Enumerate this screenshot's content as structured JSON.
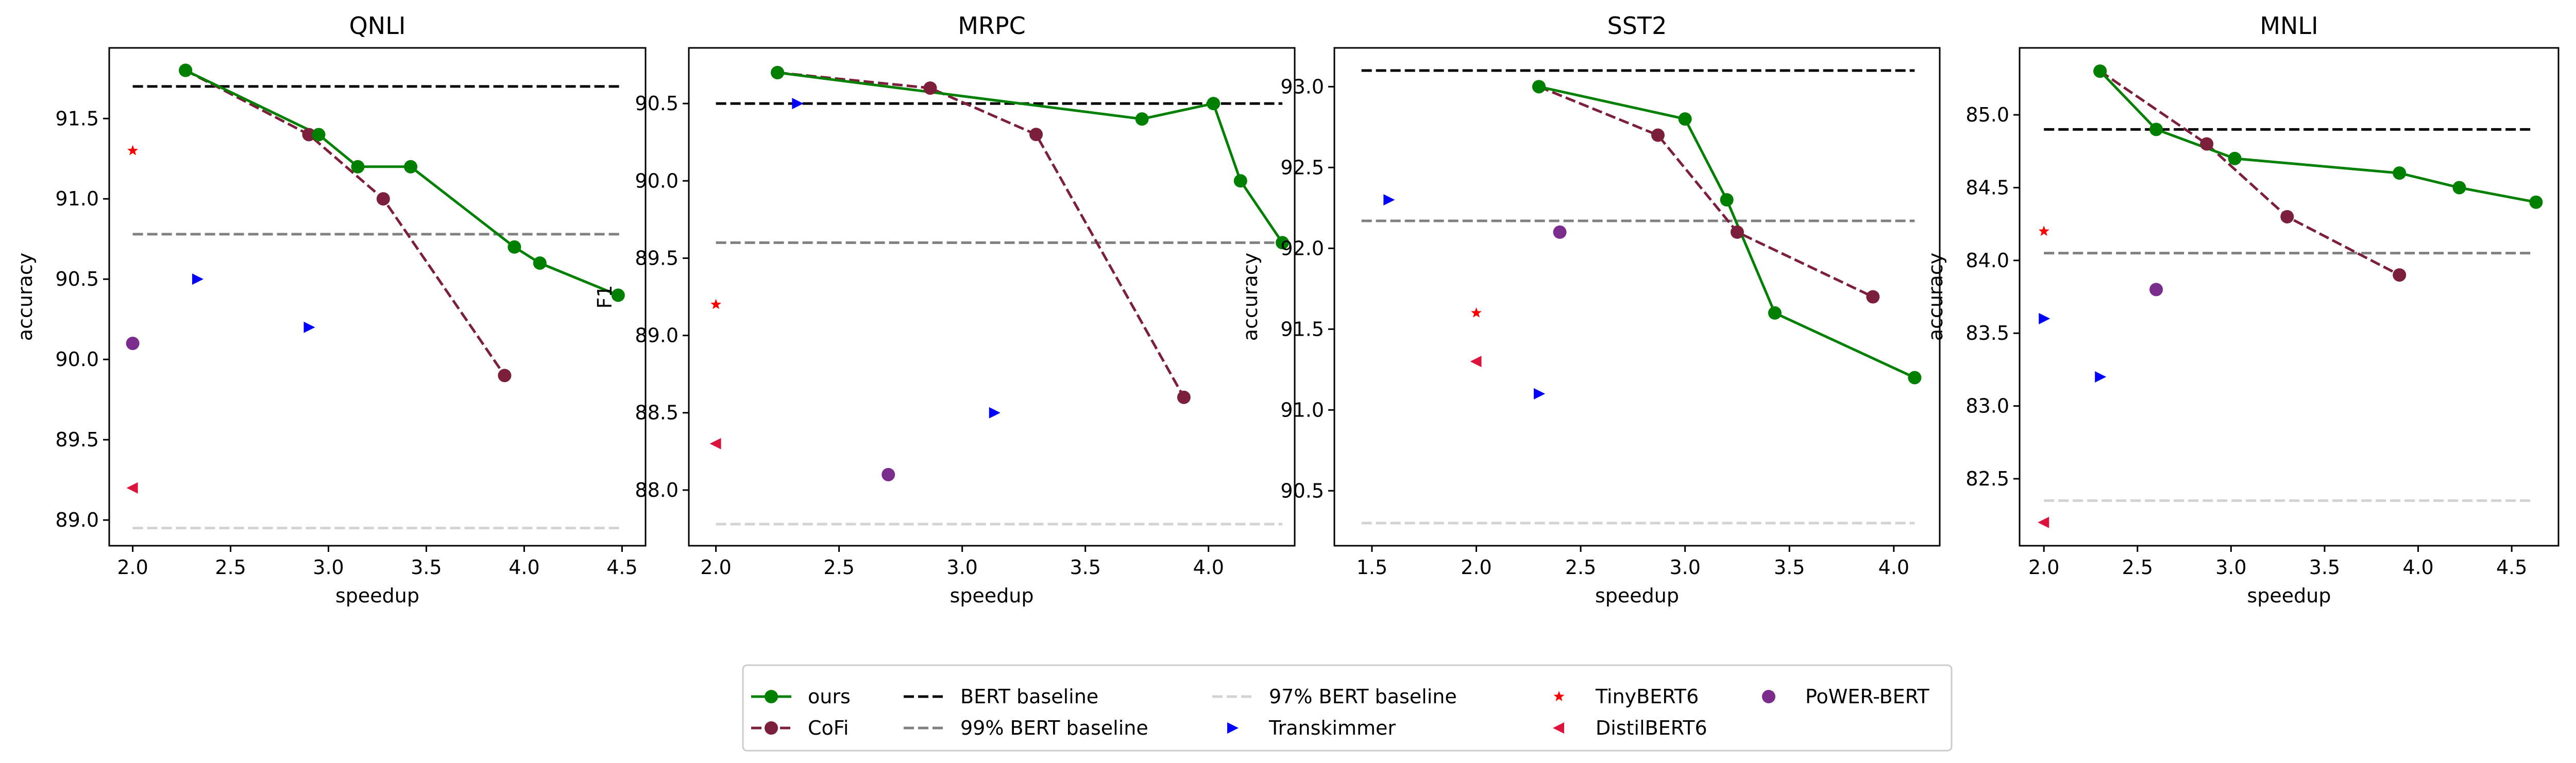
{
  "figure": {
    "legend_title": "",
    "legend_placement": "bottom-center"
  },
  "legend": [
    {
      "key": "ours",
      "label": "ours",
      "kind": "line-marker",
      "color": "#008000",
      "dash": "solid",
      "marker": "circle"
    },
    {
      "key": "cofi",
      "label": "CoFi",
      "kind": "line-marker",
      "color": "#7b1f3a",
      "dash": "dashed",
      "marker": "circle"
    },
    {
      "key": "bert",
      "label": "BERT baseline",
      "kind": "line",
      "color": "#000000",
      "dash": "dashed"
    },
    {
      "key": "b99",
      "label": "99% BERT baseline",
      "kind": "line",
      "color": "#808080",
      "dash": "dashed"
    },
    {
      "key": "b97",
      "label": "97% BERT baseline",
      "kind": "line",
      "color": "#d3d3d3",
      "dash": "dashed"
    },
    {
      "key": "transkimmer",
      "label": "Transkimmer",
      "kind": "marker",
      "color": "#0000ff",
      "marker": "triangle-right"
    },
    {
      "key": "tinybert",
      "label": "TinyBERT6",
      "kind": "marker",
      "color": "#ff0000",
      "marker": "star"
    },
    {
      "key": "distilbert",
      "label": "DistilBERT6",
      "kind": "marker",
      "color": "#dc143c",
      "marker": "triangle-left"
    },
    {
      "key": "powerbert",
      "label": "PoWER-BERT",
      "kind": "marker",
      "color": "#7b2d8e",
      "marker": "circle"
    }
  ],
  "chart_data": [
    {
      "type": "line",
      "title": "QNLI",
      "xlabel": "speedup",
      "ylabel": "accuracy",
      "xlim": [
        1.88,
        4.62
      ],
      "ylim": [
        88.84,
        91.94
      ],
      "xticks": [
        2.0,
        2.5,
        3.0,
        3.5,
        4.0,
        4.5
      ],
      "xtick_labels": [
        "2.0",
        "2.5",
        "3.0",
        "3.5",
        "4.0",
        "4.5"
      ],
      "yticks": [
        89.0,
        89.5,
        90.0,
        90.5,
        91.0,
        91.5
      ],
      "ytick_labels": [
        "89.0",
        "89.5",
        "90.0",
        "90.5",
        "91.0",
        "91.5"
      ],
      "hlines": {
        "bert": 91.7,
        "b99": 90.78,
        "b97": 88.95
      },
      "hline_xrange": [
        2.0,
        4.5
      ],
      "series": [
        {
          "key": "ours",
          "x": [
            2.27,
            2.95,
            3.15,
            3.42,
            3.95,
            4.08,
            4.48
          ],
          "y": [
            91.8,
            91.4,
            91.2,
            91.2,
            90.7,
            90.6,
            90.4
          ]
        },
        {
          "key": "cofi",
          "x": [
            2.27,
            2.9,
            3.28,
            3.9
          ],
          "y": [
            91.8,
            91.4,
            91.0,
            89.9
          ]
        }
      ],
      "points": {
        "transkimmer": [
          [
            2.33,
            90.5
          ],
          [
            2.9,
            90.2
          ]
        ],
        "tinybert": [
          [
            2.0,
            91.3
          ]
        ],
        "distilbert": [
          [
            2.0,
            89.2
          ]
        ],
        "powerbert": [
          [
            2.0,
            90.1
          ]
        ]
      }
    },
    {
      "type": "line",
      "title": "MRPC",
      "xlabel": "speedup",
      "ylabel": "F1",
      "xlim": [
        1.89,
        4.35
      ],
      "ylim": [
        87.64,
        90.86
      ],
      "xticks": [
        2.0,
        2.5,
        3.0,
        3.5,
        4.0
      ],
      "xtick_labels": [
        "2.0",
        "2.5",
        "3.0",
        "3.5",
        "4.0"
      ],
      "yticks": [
        88.0,
        88.5,
        89.0,
        89.5,
        90.0,
        90.5
      ],
      "ytick_labels": [
        "88.0",
        "88.5",
        "89.0",
        "89.5",
        "90.0",
        "90.5"
      ],
      "hlines": {
        "bert": 90.5,
        "b99": 89.6,
        "b97": 87.78
      },
      "hline_xrange": [
        2.0,
        4.3
      ],
      "series": [
        {
          "key": "ours",
          "x": [
            2.25,
            3.73,
            4.02,
            4.13,
            4.3
          ],
          "y": [
            90.7,
            90.4,
            90.5,
            90.0,
            89.6
          ]
        },
        {
          "key": "cofi",
          "x": [
            2.25,
            2.87,
            3.3,
            3.9
          ],
          "y": [
            90.7,
            90.6,
            90.3,
            88.6
          ]
        }
      ],
      "points": {
        "transkimmer": [
          [
            2.33,
            90.5
          ],
          [
            3.13,
            88.5
          ]
        ],
        "tinybert": [
          [
            2.0,
            89.2
          ]
        ],
        "distilbert": [
          [
            2.0,
            88.3
          ]
        ],
        "powerbert": [
          [
            2.7,
            88.1
          ]
        ]
      }
    },
    {
      "type": "line",
      "title": "SST2",
      "xlabel": "speedup",
      "ylabel": "accuracy",
      "xlim": [
        1.32,
        4.22
      ],
      "ylim": [
        90.16,
        93.24
      ],
      "xticks": [
        1.5,
        2.0,
        2.5,
        3.0,
        3.5,
        4.0
      ],
      "xtick_labels": [
        "1.5",
        "2.0",
        "2.5",
        "3.0",
        "3.5",
        "4.0"
      ],
      "yticks": [
        90.5,
        91.0,
        91.5,
        92.0,
        92.5,
        93.0
      ],
      "ytick_labels": [
        "90.5",
        "91.0",
        "91.5",
        "92.0",
        "92.5",
        "93.0"
      ],
      "hlines": {
        "bert": 93.1,
        "b99": 92.17,
        "b97": 90.3
      },
      "hline_xrange": [
        1.45,
        4.1
      ],
      "series": [
        {
          "key": "ours",
          "x": [
            2.3,
            3.0,
            3.2,
            3.43,
            4.1
          ],
          "y": [
            93.0,
            92.8,
            92.3,
            91.6,
            91.2
          ]
        },
        {
          "key": "cofi",
          "x": [
            2.3,
            2.87,
            3.25,
            3.9
          ],
          "y": [
            93.0,
            92.7,
            92.1,
            91.7
          ]
        }
      ],
      "points": {
        "transkimmer": [
          [
            1.58,
            92.3
          ],
          [
            2.3,
            91.1
          ]
        ],
        "tinybert": [
          [
            2.0,
            91.6
          ]
        ],
        "distilbert": [
          [
            2.0,
            91.3
          ]
        ],
        "powerbert": [
          [
            2.4,
            92.1
          ]
        ]
      }
    },
    {
      "type": "line",
      "title": "MNLI",
      "xlabel": "speedup",
      "ylabel": "accuracy",
      "xlim": [
        1.87,
        4.75
      ],
      "ylim": [
        82.04,
        85.46
      ],
      "xticks": [
        2.0,
        2.5,
        3.0,
        3.5,
        4.0,
        4.5
      ],
      "xtick_labels": [
        "2.0",
        "2.5",
        "3.0",
        "3.5",
        "4.0",
        "4.5"
      ],
      "yticks": [
        82.5,
        83.0,
        83.5,
        84.0,
        84.5,
        85.0
      ],
      "ytick_labels": [
        "82.5",
        "83.0",
        "83.5",
        "84.0",
        "84.5",
        "85.0"
      ],
      "hlines": {
        "bert": 84.9,
        "b99": 84.05,
        "b97": 82.35
      },
      "hline_xrange": [
        2.0,
        4.62
      ],
      "series": [
        {
          "key": "ours",
          "x": [
            2.3,
            2.6,
            3.02,
            3.9,
            4.22,
            4.63
          ],
          "y": [
            85.3,
            84.9,
            84.7,
            84.6,
            84.5,
            84.4
          ]
        },
        {
          "key": "cofi",
          "x": [
            2.3,
            2.87,
            3.3,
            3.9
          ],
          "y": [
            85.3,
            84.8,
            84.3,
            83.9
          ]
        }
      ],
      "points": {
        "transkimmer": [
          [
            2.0,
            83.6
          ],
          [
            2.3,
            83.2
          ]
        ],
        "tinybert": [
          [
            2.0,
            84.2
          ]
        ],
        "distilbert": [
          [
            2.0,
            82.2
          ]
        ],
        "powerbert": [
          [
            2.6,
            83.8
          ]
        ]
      }
    }
  ]
}
